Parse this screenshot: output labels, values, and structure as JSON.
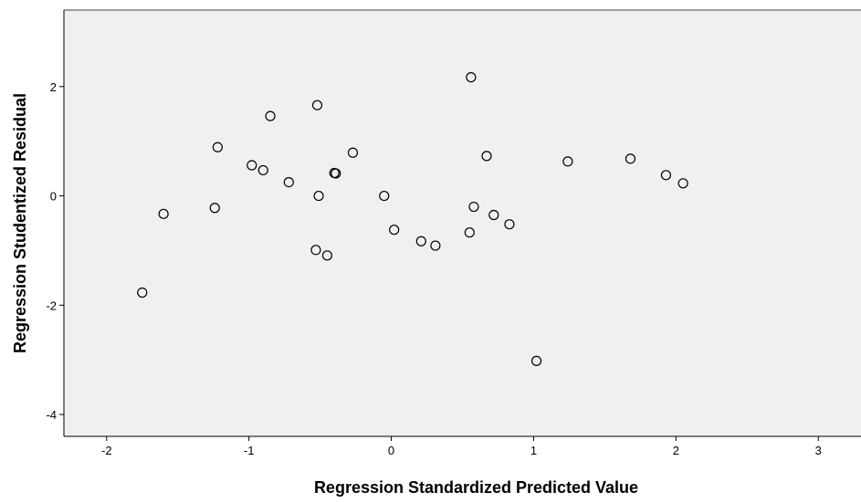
{
  "chart_data": {
    "type": "scatter",
    "xlabel": "Regression Standardized Predicted Value",
    "ylabel": "Regression Studentized Residual",
    "xlim": [
      -2.3,
      3.3
    ],
    "ylim": [
      -4.4,
      3.4
    ],
    "xticks": [
      "-2",
      "-1",
      "0",
      "1",
      "2",
      "3"
    ],
    "yticks": [
      "-4",
      "-2",
      "0",
      "2"
    ],
    "grid": false,
    "legend": "none",
    "colors": {
      "plot_bg": "#f0f0f0",
      "marker_stroke": "#000000",
      "axis": "#000000"
    },
    "points": [
      {
        "x": -1.75,
        "y": -1.77
      },
      {
        "x": -1.6,
        "y": -0.33
      },
      {
        "x": -1.24,
        "y": -0.22
      },
      {
        "x": -1.22,
        "y": 0.89
      },
      {
        "x": -0.98,
        "y": 0.56
      },
      {
        "x": -0.9,
        "y": 0.47
      },
      {
        "x": -0.85,
        "y": 1.46
      },
      {
        "x": -0.72,
        "y": 0.25
      },
      {
        "x": -0.52,
        "y": 1.66
      },
      {
        "x": -0.51,
        "y": 0.0
      },
      {
        "x": -0.53,
        "y": -0.99
      },
      {
        "x": -0.45,
        "y": -1.09
      },
      {
        "x": -0.4,
        "y": 0.42
      },
      {
        "x": -0.39,
        "y": 0.41
      },
      {
        "x": -0.27,
        "y": 0.79
      },
      {
        "x": -0.05,
        "y": 0.0
      },
      {
        "x": 0.02,
        "y": -0.62
      },
      {
        "x": 0.21,
        "y": -0.83
      },
      {
        "x": 0.31,
        "y": -0.91
      },
      {
        "x": 0.55,
        "y": -0.67
      },
      {
        "x": 0.56,
        "y": 2.17
      },
      {
        "x": 0.58,
        "y": -0.2
      },
      {
        "x": 0.67,
        "y": 0.73
      },
      {
        "x": 0.72,
        "y": -0.35
      },
      {
        "x": 0.83,
        "y": -0.52
      },
      {
        "x": 1.02,
        "y": -3.02
      },
      {
        "x": 1.24,
        "y": 0.63
      },
      {
        "x": 1.68,
        "y": 0.68
      },
      {
        "x": 1.93,
        "y": 0.38
      },
      {
        "x": 2.05,
        "y": 0.23
      }
    ]
  }
}
